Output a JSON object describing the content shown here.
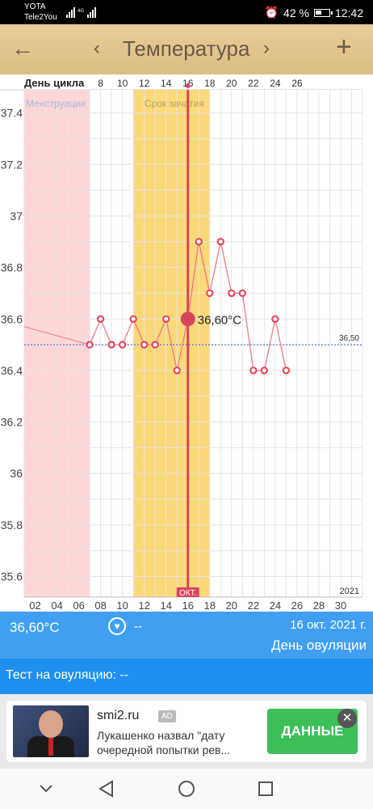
{
  "status_bar": {
    "carrier1": "YOTA",
    "carrier2": "Tele2You",
    "network": "4G",
    "battery": "42 %",
    "time": "12:42"
  },
  "header": {
    "title": "Температура"
  },
  "chart": {
    "cycle_label": "День цикла",
    "menstruation_label": "Менструации",
    "conception_label": "Срок зачатия",
    "year": "2021",
    "month_label": "ОКТ.",
    "current_value_label": "36,60°C",
    "baseline_label": "36,50"
  },
  "chart_data": {
    "type": "line",
    "x_label": "День цикла",
    "cycle_day_ticks": [
      "8",
      "10",
      "12",
      "14",
      "16",
      "18",
      "20",
      "22",
      "24",
      "26"
    ],
    "date_ticks": [
      "02",
      "04",
      "06",
      "08",
      "10",
      "12",
      "14",
      "16",
      "18",
      "20",
      "22",
      "24",
      "26",
      "28",
      "30"
    ],
    "y_ticks": [
      "37.4",
      "37.2",
      "37",
      "36.8",
      "36.6",
      "36.4",
      "36.2",
      "36",
      "35.8",
      "35.6"
    ],
    "ylim": [
      35.52,
      37.49
    ],
    "xlim": [
      1,
      32
    ],
    "baseline": 36.5,
    "selected_date": 16,
    "selected_value": 36.6,
    "menstruation_dates": [
      1,
      7
    ],
    "conception_dates": [
      11,
      18
    ],
    "series": [
      {
        "x": [
          7,
          8,
          9,
          10,
          11,
          12,
          13,
          14,
          15,
          16,
          17,
          18,
          19,
          20,
          21,
          22,
          23,
          24,
          25
        ],
        "y": [
          36.5,
          36.6,
          36.5,
          36.5,
          36.6,
          36.5,
          36.5,
          36.6,
          36.4,
          36.6,
          36.9,
          36.7,
          36.9,
          36.7,
          36.7,
          36.4,
          36.4,
          36.6,
          36.4
        ]
      }
    ]
  },
  "info": {
    "temperature": "36,60°C",
    "intercourse": "--",
    "date": "16 окт. 2021 г.",
    "phase": "День овуляции"
  },
  "test": {
    "label": "Тест на овуляцию: --"
  },
  "ad": {
    "site": "smi2.ru",
    "badge": "AD",
    "headline": "Лукашенко назвал \"дату очередной попытки рев...",
    "cta": "ДАННЫЕ",
    "close": "✕"
  },
  "colors": {
    "header": "#dcbd83",
    "info_bar": "#3fa0f3",
    "test_bar": "#1f8ff0",
    "menstruation": "#ffd6d6",
    "conception": "#fbd978",
    "line": "#f07a83",
    "ovulation": "#d9455e"
  }
}
